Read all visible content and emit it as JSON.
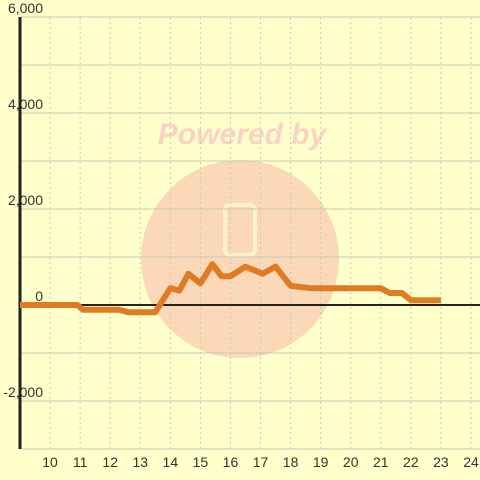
{
  "chart_data": {
    "type": "line",
    "watermark": "Powered by",
    "x": [
      9,
      10.9,
      11.1,
      12.3,
      12.6,
      13.5,
      14.0,
      14.3,
      14.6,
      15.0,
      15.4,
      15.7,
      16.0,
      16.5,
      17.07,
      17.5,
      18.0,
      18.7,
      21.0,
      21.3,
      21.7,
      22.0,
      23.0
    ],
    "series": [
      {
        "color": "#e07b24",
        "values": [
          0,
          0,
          -100,
          -100,
          -150,
          -150,
          350,
          300,
          650,
          450,
          850,
          600,
          600,
          800,
          650,
          800,
          400,
          350,
          350,
          250,
          250,
          100,
          100
        ]
      }
    ],
    "xlim": [
      9,
      24.3
    ],
    "ylim": [
      -3000,
      6000
    ],
    "xticks": [
      10,
      11,
      12,
      13,
      14,
      15,
      16,
      17,
      18,
      19,
      20,
      21,
      22,
      23,
      24
    ],
    "yticks": [
      {
        "value": -2000,
        "label": "-2,000"
      },
      0,
      {
        "value": 2000,
        "label": "2,000"
      },
      {
        "value": 4000,
        "label": "4,000"
      },
      {
        "value": 6000,
        "label": "6,000"
      }
    ],
    "yminor": [
      -3000,
      -1000,
      1000,
      3000,
      5000
    ],
    "grid": true
  }
}
